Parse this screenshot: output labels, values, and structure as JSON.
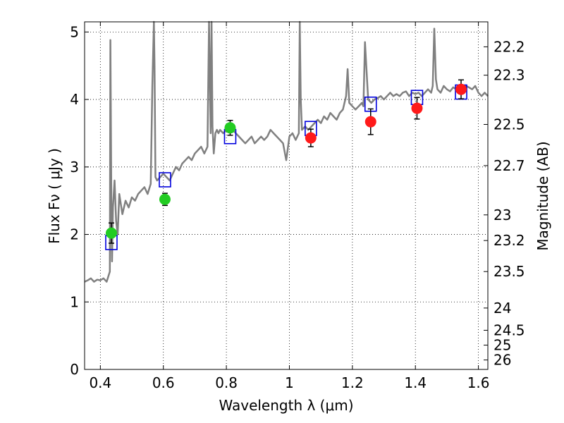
{
  "chart_data": {
    "type": "line",
    "xlabel": "Wavelength  λ (μm)",
    "ylabel": "Flux  Fν  ( μJy )",
    "ylabel_right": "Magnitude (AB)",
    "xlim": [
      0.35,
      1.63
    ],
    "ylim": [
      0,
      5.15
    ],
    "grid": true,
    "grid_style": "dotted",
    "x_ticks": [
      0.4,
      0.6,
      0.8,
      1.0,
      1.2,
      1.4,
      1.6
    ],
    "x_tick_labels": [
      "0.4",
      "0.6",
      "0.8",
      "1",
      "1.2",
      "1.4",
      "1.6"
    ],
    "y_ticks": [
      0,
      1,
      2,
      3,
      4,
      5
    ],
    "y_tick_labels": [
      "0",
      "1",
      "2",
      "3",
      "4",
      "5"
    ],
    "right_axis_ticks": [
      {
        "label": "22.2",
        "flux": 4.78
      },
      {
        "label": "22.3",
        "flux": 4.36
      },
      {
        "label": "22.5",
        "flux": 3.63
      },
      {
        "label": "22.7",
        "flux": 3.02
      },
      {
        "label": "23",
        "flux": 2.29
      },
      {
        "label": "23.2",
        "flux": 1.91
      },
      {
        "label": "23.5",
        "flux": 1.45
      },
      {
        "label": "24",
        "flux": 0.91
      },
      {
        "label": "24.5",
        "flux": 0.58
      },
      {
        "label": "25",
        "flux": 0.36
      },
      {
        "label": "26",
        "flux": 0.14
      }
    ],
    "series": [
      {
        "kind": "spectrum",
        "color": "#808080",
        "x": [
          0.35,
          0.36,
          0.37,
          0.38,
          0.39,
          0.4,
          0.41,
          0.42,
          0.43,
          0.432,
          0.435,
          0.437,
          0.44,
          0.445,
          0.45,
          0.455,
          0.46,
          0.47,
          0.48,
          0.49,
          0.5,
          0.51,
          0.52,
          0.53,
          0.54,
          0.55,
          0.56,
          0.565,
          0.57,
          0.572,
          0.575,
          0.58,
          0.59,
          0.6,
          0.61,
          0.62,
          0.63,
          0.64,
          0.65,
          0.66,
          0.67,
          0.68,
          0.69,
          0.7,
          0.71,
          0.72,
          0.73,
          0.74,
          0.745,
          0.75,
          0.753,
          0.756,
          0.76,
          0.765,
          0.77,
          0.775,
          0.78,
          0.79,
          0.8,
          0.81,
          0.82,
          0.83,
          0.84,
          0.85,
          0.86,
          0.87,
          0.88,
          0.89,
          0.9,
          0.91,
          0.92,
          0.93,
          0.94,
          0.95,
          0.96,
          0.97,
          0.98,
          0.99,
          1.0,
          1.01,
          1.02,
          1.03,
          1.033,
          1.036,
          1.04,
          1.05,
          1.06,
          1.07,
          1.08,
          1.09,
          1.1,
          1.11,
          1.12,
          1.13,
          1.14,
          1.15,
          1.16,
          1.17,
          1.18,
          1.185,
          1.19,
          1.2,
          1.21,
          1.22,
          1.23,
          1.235,
          1.24,
          1.25,
          1.26,
          1.27,
          1.28,
          1.29,
          1.3,
          1.31,
          1.32,
          1.33,
          1.34,
          1.35,
          1.36,
          1.37,
          1.38,
          1.39,
          1.4,
          1.41,
          1.42,
          1.43,
          1.44,
          1.45,
          1.455,
          1.46,
          1.465,
          1.47,
          1.48,
          1.49,
          1.5,
          1.51,
          1.52,
          1.53,
          1.54,
          1.55,
          1.56,
          1.57,
          1.58,
          1.59,
          1.6,
          1.61,
          1.62,
          1.63
        ],
        "y": [
          1.3,
          1.32,
          1.35,
          1.3,
          1.33,
          1.32,
          1.35,
          1.3,
          1.45,
          4.88,
          2.4,
          1.6,
          2.4,
          2.8,
          2.2,
          2.0,
          2.6,
          2.3,
          2.5,
          2.4,
          2.55,
          2.5,
          2.6,
          2.65,
          2.7,
          2.6,
          2.75,
          4.2,
          5.15,
          4.5,
          2.85,
          2.8,
          2.85,
          2.9,
          2.85,
          2.8,
          2.9,
          3.0,
          2.95,
          3.05,
          3.1,
          3.15,
          3.1,
          3.2,
          3.25,
          3.3,
          3.2,
          3.3,
          5.15,
          3.5,
          5.15,
          3.6,
          3.2,
          3.5,
          3.55,
          3.5,
          3.55,
          3.5,
          3.55,
          3.6,
          3.55,
          3.5,
          3.45,
          3.4,
          3.35,
          3.4,
          3.45,
          3.35,
          3.4,
          3.45,
          3.4,
          3.45,
          3.55,
          3.5,
          3.45,
          3.4,
          3.35,
          3.1,
          3.45,
          3.5,
          3.4,
          3.5,
          5.15,
          4.0,
          3.55,
          3.6,
          3.55,
          3.6,
          3.65,
          3.7,
          3.65,
          3.75,
          3.7,
          3.8,
          3.75,
          3.7,
          3.8,
          3.85,
          4.05,
          4.45,
          3.95,
          3.9,
          3.85,
          3.9,
          3.95,
          3.9,
          4.85,
          4.0,
          3.95,
          4.0,
          4.02,
          4.05,
          4.0,
          4.05,
          4.1,
          4.05,
          4.08,
          4.05,
          4.1,
          4.12,
          4.05,
          4.1,
          4.08,
          4.1,
          4.05,
          4.1,
          4.15,
          4.1,
          4.2,
          5.05,
          4.3,
          4.15,
          4.1,
          4.2,
          4.15,
          4.12,
          4.18,
          4.15,
          4.2,
          4.15,
          4.2,
          4.18,
          4.15,
          4.2,
          4.1,
          4.05,
          4.1,
          4.05
        ]
      },
      {
        "kind": "model-photometry",
        "marker": "open-square",
        "color": "#0000dd",
        "x": [
          0.435,
          0.605,
          0.812,
          1.068,
          1.258,
          1.405,
          1.545
        ],
        "y": [
          1.88,
          2.81,
          3.45,
          3.57,
          3.93,
          4.03,
          4.11
        ]
      },
      {
        "kind": "optical-photometry",
        "marker": "circle",
        "color": "#22cc22",
        "x": [
          0.435,
          0.605,
          0.812
        ],
        "y": [
          2.02,
          2.52,
          3.58
        ],
        "err": [
          0.15,
          0.09,
          0.11
        ]
      },
      {
        "kind": "nir-photometry",
        "marker": "circle",
        "color": "#ff1a1a",
        "x": [
          1.068,
          1.258,
          1.405,
          1.545
        ],
        "y": [
          3.43,
          3.67,
          3.87,
          4.15
        ],
        "err": [
          0.13,
          0.19,
          0.16,
          0.14
        ]
      }
    ]
  }
}
